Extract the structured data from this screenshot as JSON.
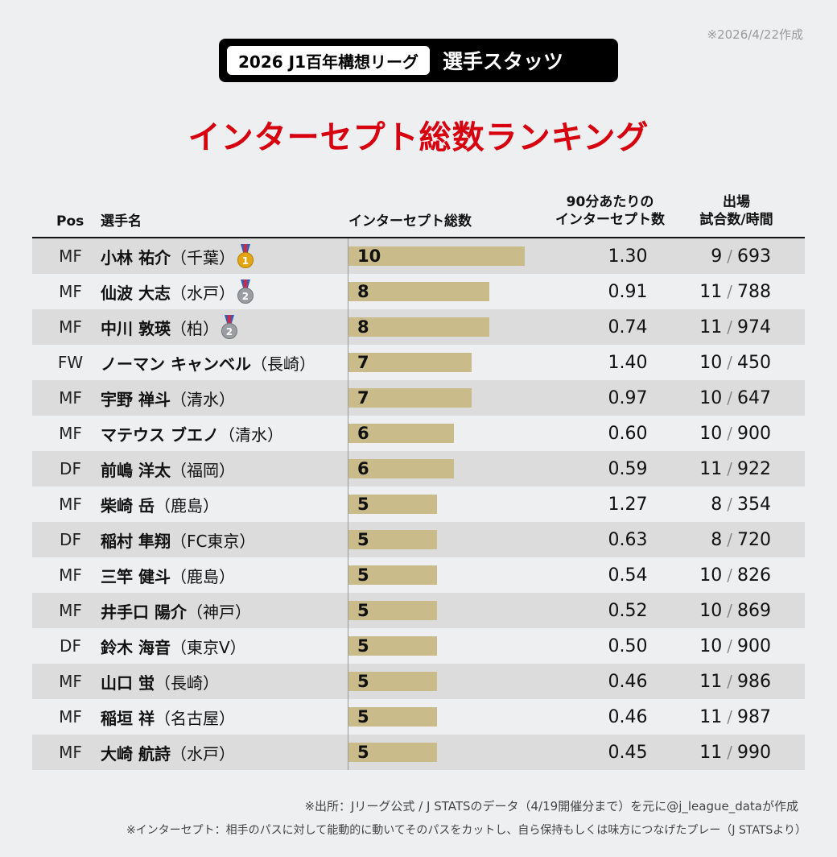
{
  "date_note": "※2026/4/22作成",
  "header": {
    "league": "2026 J1百年構想リーグ",
    "subtitle": "選手スタッツ"
  },
  "title": "インターセプト総数ランキング",
  "columns": {
    "pos": "Pos",
    "name": "選手名",
    "total": "インターセプト総数",
    "per90_line1": "90分あたりの",
    "per90_line2": "インターセプト数",
    "games_line1": "出場",
    "games_line2": "試合数/時間"
  },
  "colors": {
    "bar": "#c9bc8a",
    "title": "#d7000f",
    "row_alt": "#dcdcdc",
    "background": "#eeeff1"
  },
  "chart_data": {
    "type": "bar",
    "title": "インターセプト総数ランキング",
    "xlim": [
      0,
      10
    ],
    "rows": [
      {
        "pos": "MF",
        "name": "小林 祐介",
        "club": "（千葉）",
        "total": 10,
        "per90": "1.30",
        "games": "9",
        "minutes": "693",
        "medal": "gold",
        "medal_num": "1"
      },
      {
        "pos": "MF",
        "name": "仙波 大志",
        "club": "（水戸）",
        "total": 8,
        "per90": "0.91",
        "games": "11",
        "minutes": "788",
        "medal": "silver",
        "medal_num": "2"
      },
      {
        "pos": "MF",
        "name": "中川 敦瑛",
        "club": "（柏）",
        "total": 8,
        "per90": "0.74",
        "games": "11",
        "minutes": "974",
        "medal": "silver",
        "medal_num": "2"
      },
      {
        "pos": "FW",
        "name": "ノーマン キャンベル",
        "club": "（長崎）",
        "total": 7,
        "per90": "1.40",
        "games": "10",
        "minutes": "450"
      },
      {
        "pos": "MF",
        "name": "宇野 禅斗",
        "club": "（清水）",
        "total": 7,
        "per90": "0.97",
        "games": "10",
        "minutes": "647"
      },
      {
        "pos": "MF",
        "name": "マテウス ブエノ",
        "club": "（清水）",
        "total": 6,
        "per90": "0.60",
        "games": "10",
        "minutes": "900"
      },
      {
        "pos": "DF",
        "name": "前嶋 洋太",
        "club": "（福岡）",
        "total": 6,
        "per90": "0.59",
        "games": "11",
        "minutes": "922"
      },
      {
        "pos": "MF",
        "name": "柴崎 岳",
        "club": "（鹿島）",
        "total": 5,
        "per90": "1.27",
        "games": "8",
        "minutes": "354"
      },
      {
        "pos": "DF",
        "name": "稲村 隼翔",
        "club": "（FC東京）",
        "total": 5,
        "per90": "0.63",
        "games": "8",
        "minutes": "720"
      },
      {
        "pos": "MF",
        "name": "三竿 健斗",
        "club": "（鹿島）",
        "total": 5,
        "per90": "0.54",
        "games": "10",
        "minutes": "826"
      },
      {
        "pos": "MF",
        "name": "井手口 陽介",
        "club": "（神戸）",
        "total": 5,
        "per90": "0.52",
        "games": "10",
        "minutes": "869"
      },
      {
        "pos": "DF",
        "name": "鈴木 海音",
        "club": "（東京V）",
        "total": 5,
        "per90": "0.50",
        "games": "10",
        "minutes": "900"
      },
      {
        "pos": "MF",
        "name": "山口 蛍",
        "club": "（長崎）",
        "total": 5,
        "per90": "0.46",
        "games": "11",
        "minutes": "986"
      },
      {
        "pos": "MF",
        "name": "稲垣 祥",
        "club": "（名古屋）",
        "total": 5,
        "per90": "0.46",
        "games": "11",
        "minutes": "987"
      },
      {
        "pos": "MF",
        "name": "大崎 航詩",
        "club": "（水戸）",
        "total": 5,
        "per90": "0.45",
        "games": "11",
        "minutes": "990"
      }
    ]
  },
  "footer": {
    "source": "※出所：Jリーグ公式 / J STATSのデータ（4/19開催分まで）を元に@j_league_dataが作成",
    "definition": "※インターセプト：相手のパスに対して能動的に動いてそのパスをカットし、自ら保持もしくは味方につなげたプレー（J STATSより）"
  }
}
